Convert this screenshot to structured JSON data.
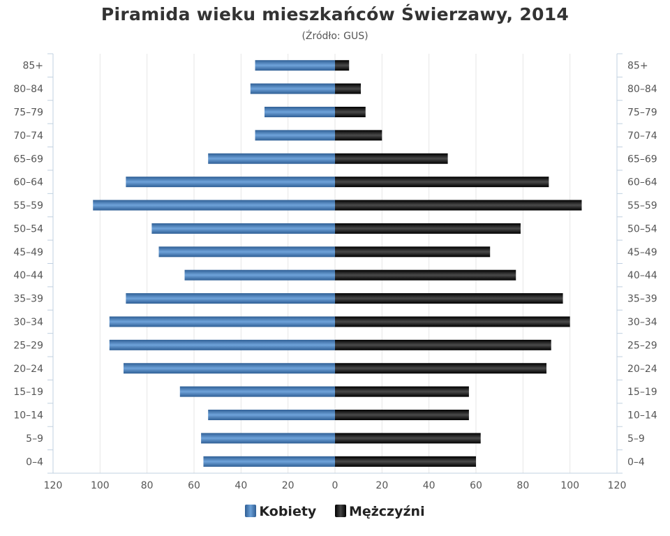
{
  "chart_data": {
    "type": "bar",
    "title": "Piramida wieku mieszkańców Świerzawy, 2014",
    "subtitle": "(Źródło: GUS)",
    "categories": [
      "85+",
      "80–84",
      "75–79",
      "70–74",
      "65–69",
      "60–64",
      "55–59",
      "50–54",
      "45–49",
      "40–44",
      "35–39",
      "30–34",
      "25–29",
      "20–24",
      "15–19",
      "10–14",
      "5–9",
      "0–4"
    ],
    "series": [
      {
        "name": "Kobiety",
        "color": "#4a86c8",
        "values": [
          34,
          36,
          30,
          34,
          54,
          89,
          103,
          78,
          75,
          64,
          89,
          96,
          96,
          90,
          66,
          54,
          57,
          56
        ]
      },
      {
        "name": "Mężczyźni",
        "color": "#1a1a1a",
        "values": [
          6,
          11,
          13,
          20,
          48,
          91,
          105,
          79,
          66,
          77,
          97,
          100,
          92,
          90,
          57,
          57,
          62,
          60
        ]
      }
    ],
    "xlim": [
      -120,
      120
    ],
    "x_ticks": [
      "120",
      "100",
      "80",
      "60",
      "40",
      "20",
      "0",
      "20",
      "40",
      "60",
      "80",
      "100",
      "120"
    ],
    "grid": true,
    "legend_position": "bottom-center"
  }
}
